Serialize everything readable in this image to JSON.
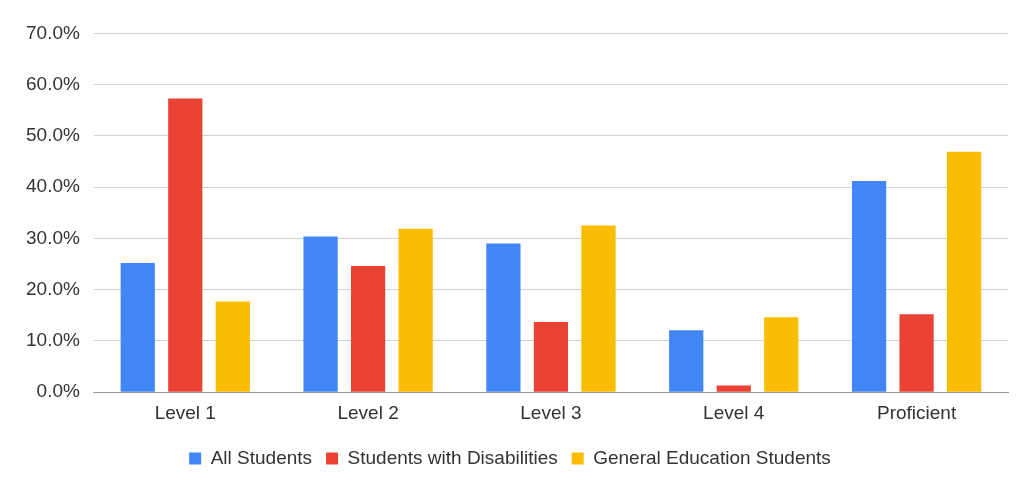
{
  "chart_data": {
    "type": "bar",
    "categories": [
      "Level 1",
      "Level 2",
      "Level 3",
      "Level 4",
      "Proficient"
    ],
    "series": [
      {
        "name": "All Students",
        "color": "#4285f4",
        "values": [
          25.2,
          30.4,
          29.0,
          12.1,
          41.2
        ]
      },
      {
        "name": "Students with Disabilities",
        "color": "#ea4335",
        "values": [
          57.3,
          24.6,
          13.7,
          1.3,
          15.2
        ]
      },
      {
        "name": "General Education Students",
        "color": "#fbbc04",
        "values": [
          17.7,
          31.9,
          32.5,
          14.6,
          46.9
        ]
      }
    ],
    "ylim": [
      0,
      70
    ],
    "yticks": [
      {
        "value": 0,
        "label": "0.0%"
      },
      {
        "value": 10,
        "label": "10.0%"
      },
      {
        "value": 20,
        "label": "20.0%"
      },
      {
        "value": 30,
        "label": "30.0%"
      },
      {
        "value": 40,
        "label": "40.0%"
      },
      {
        "value": 50,
        "label": "50.0%"
      },
      {
        "value": 60,
        "label": "60.0%"
      },
      {
        "value": 70,
        "label": "70.0%"
      }
    ],
    "grid": "y",
    "legend": "bottom"
  }
}
